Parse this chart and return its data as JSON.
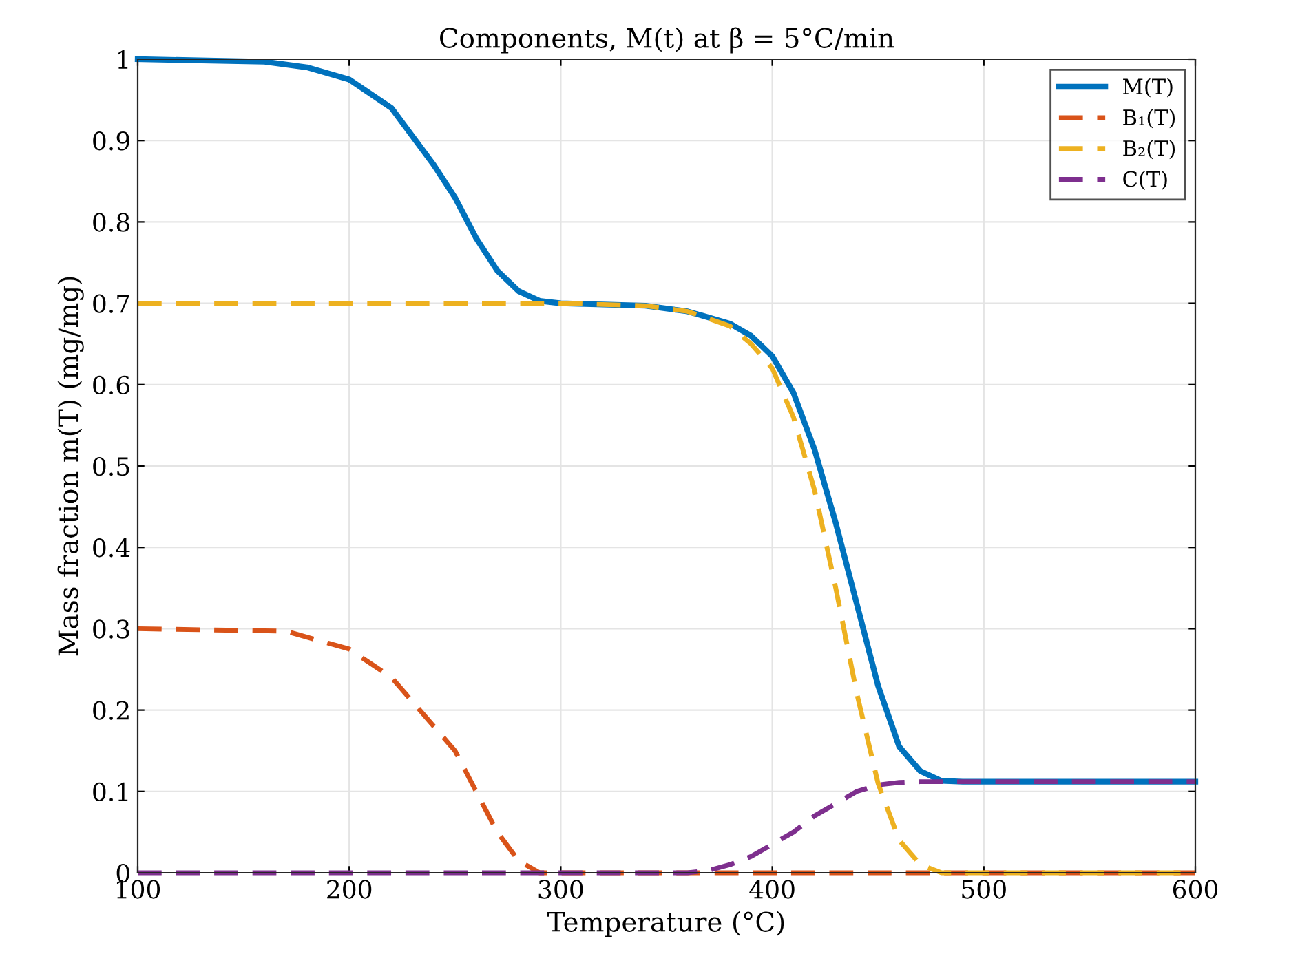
{
  "chart_data": {
    "type": "line",
    "title": "Components, M(t) at β = 5°C/min",
    "xlabel": "Temperature (°C)",
    "ylabel": "Mass fraction m(T) (mg/mg)",
    "xlim": [
      100,
      600
    ],
    "xticks": [
      100,
      200,
      300,
      400,
      500,
      600
    ],
    "ylim": [
      0,
      1
    ],
    "yticks": [
      0,
      0.1,
      0.2,
      0.3,
      0.4,
      0.5,
      0.6,
      0.7,
      0.8,
      0.9,
      1
    ],
    "grid": true,
    "legend": "top right",
    "series": [
      {
        "name": "M(T)",
        "color": "#0072bd",
        "line_style": "solid",
        "x": [
          100,
          160,
          180,
          200,
          220,
          240,
          250,
          260,
          270,
          280,
          290,
          300,
          340,
          360,
          380,
          390,
          400,
          410,
          420,
          430,
          440,
          450,
          460,
          470,
          480,
          490,
          600
        ],
        "values": [
          1,
          0.997,
          0.99,
          0.975,
          0.94,
          0.87,
          0.83,
          0.78,
          0.74,
          0.715,
          0.703,
          0.7,
          0.697,
          0.69,
          0.675,
          0.66,
          0.635,
          0.59,
          0.52,
          0.43,
          0.33,
          0.23,
          0.155,
          0.125,
          0.113,
          0.112,
          0.112
        ]
      },
      {
        "name": "B₁(T)",
        "color": "#d95319",
        "line_style": "dashed",
        "x": [
          100,
          170,
          200,
          220,
          240,
          250,
          260,
          270,
          280,
          290,
          600
        ],
        "values": [
          0.3,
          0.297,
          0.275,
          0.24,
          0.18,
          0.15,
          0.1,
          0.05,
          0.015,
          0,
          0
        ]
      },
      {
        "name": "B₂(T)",
        "color": "#edb120",
        "line_style": "dashed",
        "x": [
          100,
          300,
          340,
          360,
          380,
          390,
          400,
          410,
          420,
          430,
          440,
          450,
          460,
          470,
          480,
          600
        ],
        "values": [
          0.7,
          0.7,
          0.697,
          0.69,
          0.672,
          0.65,
          0.62,
          0.56,
          0.47,
          0.35,
          0.22,
          0.11,
          0.04,
          0.01,
          0,
          0
        ]
      },
      {
        "name": "C(T)",
        "color": "#7e2f8e",
        "line_style": "dashed",
        "x": [
          100,
          360,
          370,
          380,
          390,
          400,
          410,
          420,
          430,
          440,
          450,
          460,
          470,
          600
        ],
        "values": [
          0,
          0,
          0.003,
          0.01,
          0.02,
          0.035,
          0.05,
          0.07,
          0.085,
          0.1,
          0.108,
          0.111,
          0.112,
          0.112
        ]
      }
    ]
  }
}
